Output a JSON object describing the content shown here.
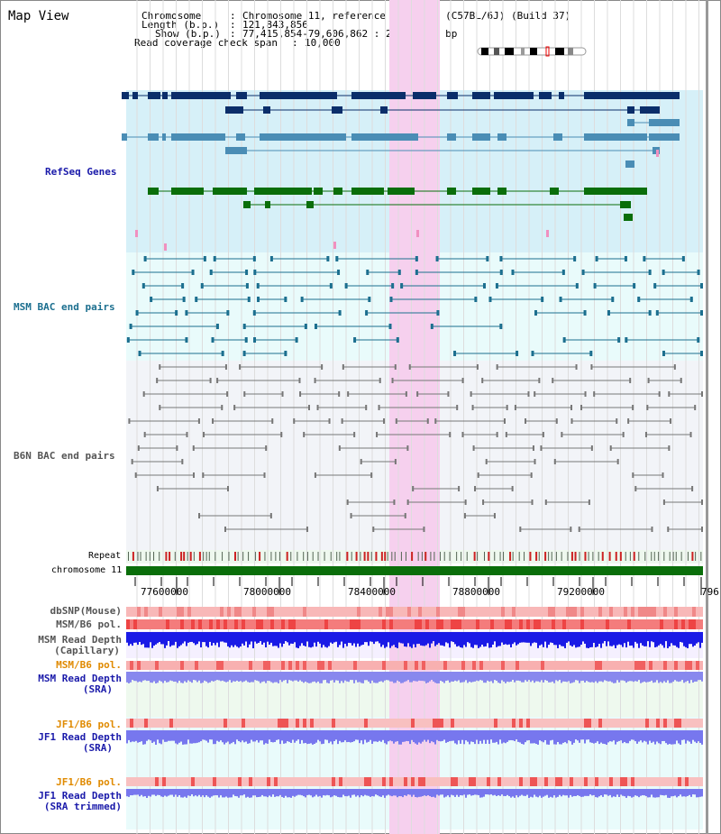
{
  "map_title": "Map View",
  "info": {
    "chromosome_key": "Chromosome",
    "chromosome_val": "Chromosome 11, reference assembly (C57BL/6J) (Build 37)",
    "length_key": "Length (b.p.)",
    "length_val": "121,843,856",
    "show_key": "Show (b.p.)",
    "show_val": "77,415,854-79,606,862 : 2,191,009 bp",
    "span_key": "Read coverage check span",
    "span_val": "10,000"
  },
  "tracks": {
    "refseq": "RefSeq Genes",
    "msm_bac": "MSM BAC end pairs",
    "b6n_bac": "B6N BAC end pairs",
    "repeat": "Repeat",
    "chromosome": "chromosome 11",
    "dbsnp": "dbSNP(Mouse)",
    "msm_b6_pol": "MSM/B6 pol.",
    "msm_depth_cap_1": "MSM Read Depth",
    "msm_depth_cap_2": "(Capillary)",
    "msm_b6_pol_sra": "MSM/B6 pol.",
    "msm_depth_sra_1": "MSM Read Depth",
    "msm_depth_sra_2": "(SRA)",
    "jf1_pol_1": "JF1/B6 pol.",
    "jf1_depth_1": "JF1 Read Depth",
    "jf1_depth_1b": "(SRA)",
    "jf1_pol_2": "JF1/B6 pol.",
    "jf1_depth_2": "JF1 Read Depth",
    "jf1_depth_2b": "(SRA trimmed)"
  },
  "axis_ticks": [
    "77600000",
    "78000000",
    "78400000",
    "78800000",
    "79200000",
    "796"
  ],
  "colors": {
    "refseq_bg": "#d6f0f8",
    "msm_bg": "#e9fbfb",
    "b6n_bg": "#f2f4f8",
    "highlight": "#f6d0ee",
    "gene_dark": "#0b2e6a",
    "gene_mid": "#4a8db5",
    "gene_green": "#0a6e0a",
    "msm_line": "#1c6f8f",
    "b6n_line": "#777777",
    "chrom_bar": "#0a6e0a",
    "refseq_label": "#1a1aaa",
    "msm_label": "#1c6f8f",
    "b6n_label": "#555555",
    "pol_orange": "#e08a00",
    "depth_blue": "#1a1aaa"
  }
}
